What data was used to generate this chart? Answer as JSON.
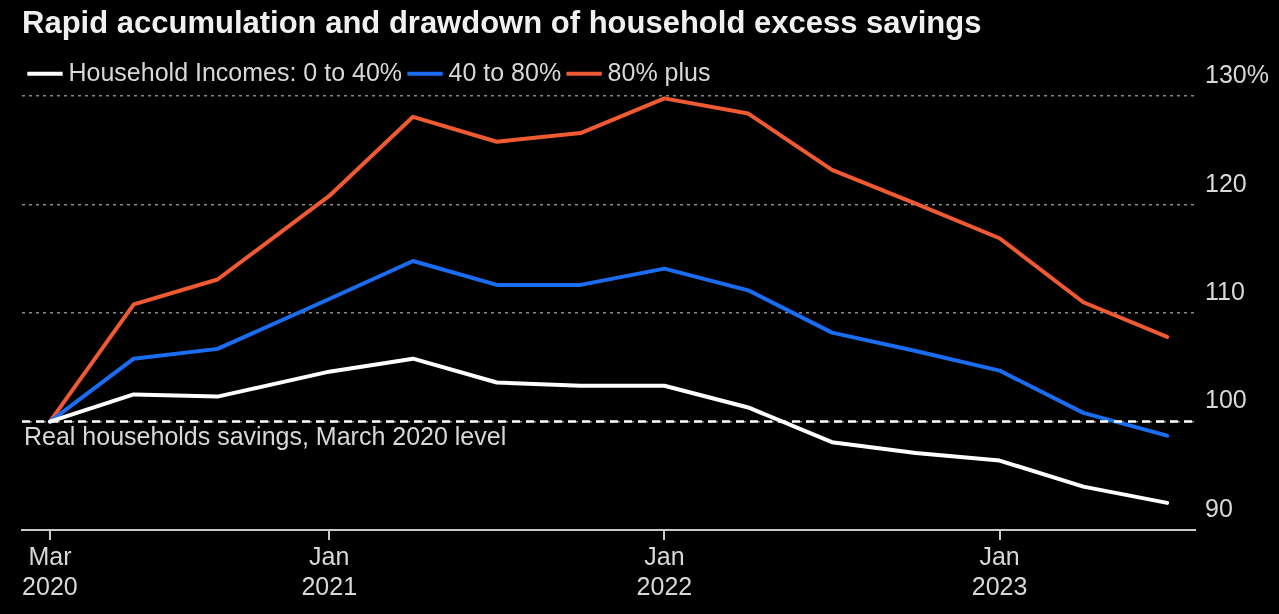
{
  "chart_data": {
    "type": "line",
    "title": "Rapid accumulation and drawdown of household excess savings",
    "x": [
      "2020-03",
      "2020-06",
      "2020-09",
      "2021-01",
      "2021-04",
      "2021-07",
      "2021-10",
      "2022-01",
      "2022-04",
      "2022-07",
      "2022-10",
      "2023-01",
      "2023-04",
      "2023-07"
    ],
    "series": [
      {
        "name": "Household Incomes: 0 to 40%",
        "color": "#ffffff",
        "values": [
          100,
          102.5,
          102.3,
          104.6,
          105.8,
          103.6,
          103.3,
          103.3,
          101.3,
          98.1,
          97.1,
          96.4,
          94.0,
          92.5
        ]
      },
      {
        "name": "40 to 80%",
        "color": "#1a6cf0",
        "values": [
          100,
          105.8,
          106.7,
          111.3,
          114.8,
          112.6,
          112.6,
          114.1,
          112.1,
          108.2,
          106.5,
          104.7,
          100.8,
          98.7
        ]
      },
      {
        "name": "80% plus",
        "color": "#f05a32",
        "values": [
          100,
          110.8,
          113.1,
          120.8,
          128.1,
          125.8,
          126.6,
          129.8,
          128.4,
          123.2,
          120.1,
          116.9,
          111.0,
          107.8
        ]
      }
    ],
    "xlim": [
      "2020-02",
      "2023-08"
    ],
    "xticks": [
      {
        "value": "2020-03",
        "label": "Mar 2020"
      },
      {
        "value": "2021-01",
        "label": "Jan 2021"
      },
      {
        "value": "2022-01",
        "label": "Jan 2022"
      },
      {
        "value": "2023-01",
        "label": "Jan 2023"
      }
    ],
    "ylim": [
      90,
      130
    ],
    "yticks": [
      90,
      100,
      110,
      120,
      {
        "value": 130,
        "label": "130%"
      }
    ],
    "ref_lines": [
      {
        "axis": "y",
        "value": 100,
        "label": "Real households savings, March 2020 level",
        "color": "#ffffff",
        "line_style": "dashed"
      }
    ],
    "grid": "y",
    "legend": "top left",
    "marker": "none",
    "line_style": "solid"
  }
}
